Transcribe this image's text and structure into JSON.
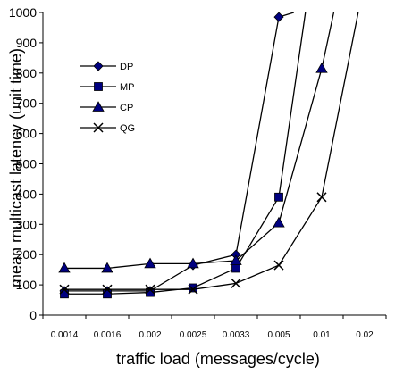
{
  "chart_data": {
    "type": "line",
    "xlabel": "traffic load (messages/cycle)",
    "ylabel": "mean multicast latency (unit time)",
    "categories": [
      "0.0014",
      "0.0016",
      "0.002",
      "0.0025",
      "0.0033",
      "0.005",
      "0.01",
      "0.02"
    ],
    "ylim": [
      0,
      1000
    ],
    "yticks": [
      0,
      100,
      200,
      300,
      400,
      500,
      600,
      700,
      800,
      900,
      1000
    ],
    "grid": false,
    "legend_position": "left",
    "series": [
      {
        "name": "DP",
        "marker": "diamond",
        "color": "#000080",
        "points": [
          [
            0,
            80
          ],
          [
            1,
            80
          ],
          [
            2,
            80
          ],
          [
            3,
            165
          ],
          [
            4,
            200
          ],
          [
            5,
            985
          ],
          [
            5.35,
            1000
          ]
        ]
      },
      {
        "name": "MP",
        "marker": "square",
        "color": "#000080",
        "points": [
          [
            0,
            70
          ],
          [
            1,
            70
          ],
          [
            2,
            75
          ],
          [
            3,
            90
          ],
          [
            4,
            155
          ],
          [
            5,
            390
          ],
          [
            5.62,
            1000
          ]
        ]
      },
      {
        "name": "CP",
        "marker": "triangle",
        "color": "#000080",
        "points": [
          [
            0,
            155
          ],
          [
            1,
            155
          ],
          [
            2,
            170
          ],
          [
            3,
            170
          ],
          [
            4,
            180
          ],
          [
            5,
            305
          ],
          [
            6,
            815
          ],
          [
            6.28,
            1000
          ]
        ]
      },
      {
        "name": "QG",
        "marker": "x",
        "color": "#000000",
        "points": [
          [
            0,
            85
          ],
          [
            1,
            85
          ],
          [
            2,
            85
          ],
          [
            3,
            85
          ],
          [
            4,
            105
          ],
          [
            5,
            165
          ],
          [
            6,
            390
          ],
          [
            6.85,
            1000
          ]
        ]
      }
    ]
  }
}
